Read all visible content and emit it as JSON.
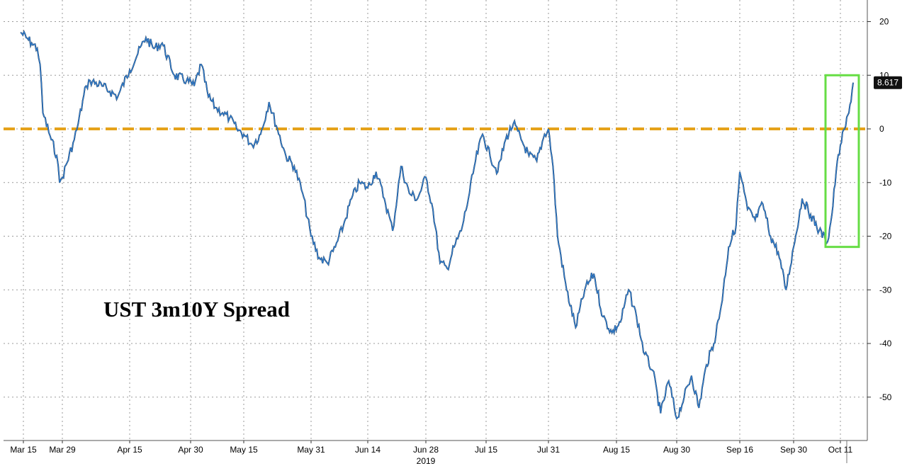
{
  "chart_data": {
    "type": "line",
    "title": "UST 3m10Y Spread",
    "x_tick_labels": [
      "Mar 15",
      "Mar 29",
      "Apr 15",
      "Apr 30",
      "May 15",
      "May 31",
      "Jun 14",
      "Jun 28",
      "Jul 15",
      "Jul 31",
      "Aug 15",
      "Aug 30",
      "Sep 16",
      "Sep 30",
      "Oct 11"
    ],
    "x_year_label": "2019",
    "y_ticks": [
      20,
      10,
      0,
      -10,
      -20,
      -30,
      -40,
      -50
    ],
    "ylim": [
      -58,
      24
    ],
    "grid": true,
    "y_axis_side": "right",
    "last_value_label": "8.617",
    "reference_line": {
      "value": 0,
      "color": "#e5a21a",
      "style": "dashed"
    },
    "highlight_box": {
      "x_start": "Oct 9",
      "x_end": "Oct 14",
      "y_range": [
        -22,
        10
      ],
      "color": "#66dd44"
    },
    "series": [
      {
        "values": [
          [
            "2019-03-14",
            18
          ],
          [
            "2019-03-16",
            17
          ],
          [
            "2019-03-18",
            16
          ],
          [
            "2019-03-20",
            15
          ],
          [
            "2019-03-21",
            12
          ],
          [
            "2019-03-22",
            3
          ],
          [
            "2019-03-25",
            -2
          ],
          [
            "2019-03-27",
            -5
          ],
          [
            "2019-03-28",
            -10
          ],
          [
            "2019-03-29",
            -9
          ],
          [
            "2019-04-01",
            -2
          ],
          [
            "2019-04-02",
            1
          ],
          [
            "2019-04-04",
            8
          ],
          [
            "2019-04-05",
            9
          ],
          [
            "2019-04-08",
            8
          ],
          [
            "2019-04-10",
            7
          ],
          [
            "2019-04-12",
            6
          ],
          [
            "2019-04-15",
            11
          ],
          [
            "2019-04-17",
            14
          ],
          [
            "2019-04-19",
            17
          ],
          [
            "2019-04-21",
            15
          ],
          [
            "2019-04-23",
            16
          ],
          [
            "2019-04-26",
            10
          ],
          [
            "2019-04-29",
            9
          ],
          [
            "2019-05-01",
            8
          ],
          [
            "2019-05-03",
            12
          ],
          [
            "2019-05-05",
            6
          ],
          [
            "2019-05-07",
            4
          ],
          [
            "2019-05-09",
            3
          ],
          [
            "2019-05-11",
            2
          ],
          [
            "2019-05-13",
            0
          ],
          [
            "2019-05-15",
            -1
          ],
          [
            "2019-05-17",
            -3
          ],
          [
            "2019-05-19",
            -1
          ],
          [
            "2019-05-21",
            5
          ],
          [
            "2019-05-23",
            0
          ],
          [
            "2019-05-25",
            -5
          ],
          [
            "2019-05-27",
            -7
          ],
          [
            "2019-05-29",
            -12
          ],
          [
            "2019-05-31",
            -20
          ],
          [
            "2019-06-02",
            -24
          ],
          [
            "2019-06-04",
            -25
          ],
          [
            "2019-06-06",
            -22
          ],
          [
            "2019-06-08",
            -18
          ],
          [
            "2019-06-10",
            -13
          ],
          [
            "2019-06-12",
            -10
          ],
          [
            "2019-06-14",
            -11
          ],
          [
            "2019-06-16",
            -8
          ],
          [
            "2019-06-18",
            -13
          ],
          [
            "2019-06-20",
            -19
          ],
          [
            "2019-06-22",
            -7
          ],
          [
            "2019-06-24",
            -12
          ],
          [
            "2019-06-26",
            -13
          ],
          [
            "2019-06-28",
            -9
          ],
          [
            "2019-06-30",
            -15
          ],
          [
            "2019-07-02",
            -25
          ],
          [
            "2019-07-04",
            -26
          ],
          [
            "2019-07-06",
            -22
          ],
          [
            "2019-07-08",
            -19
          ],
          [
            "2019-07-10",
            -13
          ],
          [
            "2019-07-12",
            -6
          ],
          [
            "2019-07-14",
            -1
          ],
          [
            "2019-07-16",
            -5
          ],
          [
            "2019-07-18",
            -8
          ],
          [
            "2019-07-20",
            -2
          ],
          [
            "2019-07-22",
            1
          ],
          [
            "2019-07-24",
            -2
          ],
          [
            "2019-07-26",
            -5
          ],
          [
            "2019-07-28",
            -6
          ],
          [
            "2019-07-30",
            -1
          ],
          [
            "2019-07-31",
            0
          ],
          [
            "2019-08-01",
            -7
          ],
          [
            "2019-08-02",
            -20
          ],
          [
            "2019-08-04",
            -30
          ],
          [
            "2019-08-06",
            -37
          ],
          [
            "2019-08-08",
            -30
          ],
          [
            "2019-08-10",
            -27
          ],
          [
            "2019-08-12",
            -35
          ],
          [
            "2019-08-14",
            -38
          ],
          [
            "2019-08-16",
            -36
          ],
          [
            "2019-08-18",
            -30
          ],
          [
            "2019-08-20",
            -35
          ],
          [
            "2019-08-22",
            -42
          ],
          [
            "2019-08-24",
            -45
          ],
          [
            "2019-08-26",
            -53
          ],
          [
            "2019-08-28",
            -47
          ],
          [
            "2019-08-30",
            -54
          ],
          [
            "2019-09-01",
            -50
          ],
          [
            "2019-09-03",
            -46
          ],
          [
            "2019-09-05",
            -52
          ],
          [
            "2019-09-07",
            -44
          ],
          [
            "2019-09-09",
            -40
          ],
          [
            "2019-09-11",
            -33
          ],
          [
            "2019-09-13",
            -22
          ],
          [
            "2019-09-15",
            -18
          ],
          [
            "2019-09-16",
            -8
          ],
          [
            "2019-09-18",
            -15
          ],
          [
            "2019-09-20",
            -17
          ],
          [
            "2019-09-22",
            -14
          ],
          [
            "2019-09-24",
            -20
          ],
          [
            "2019-09-26",
            -23
          ],
          [
            "2019-09-28",
            -30
          ],
          [
            "2019-09-30",
            -22
          ],
          [
            "2019-10-02",
            -13
          ],
          [
            "2019-10-04",
            -16
          ],
          [
            "2019-10-06",
            -19
          ],
          [
            "2019-10-08",
            -21
          ],
          [
            "2019-10-09",
            -16
          ],
          [
            "2019-10-10",
            -8
          ],
          [
            "2019-10-11",
            -3
          ],
          [
            "2019-10-12",
            0
          ],
          [
            "2019-10-13",
            3
          ],
          [
            "2019-10-14",
            8.617
          ]
        ]
      }
    ]
  }
}
